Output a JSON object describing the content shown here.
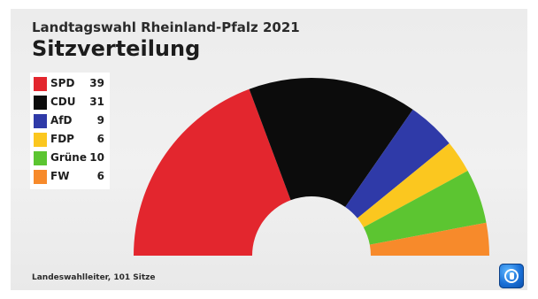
{
  "header": {
    "supertitle": "Landtagswahl Rheinland-Pfalz 2021",
    "title": "Sitzverteilung"
  },
  "chart_data": {
    "type": "pie",
    "subtype": "parliament-semicircle",
    "categories": [
      "SPD",
      "CDU",
      "AfD",
      "FDP",
      "Grüne",
      "FW"
    ],
    "values": [
      39,
      31,
      9,
      6,
      10,
      6
    ],
    "colors": [
      "#e3262e",
      "#0c0c0c",
      "#2f3aa8",
      "#fbc71f",
      "#5cc531",
      "#f78a2b"
    ],
    "legend_placement": "top-left"
  },
  "legend": [
    {
      "party": "SPD",
      "seats": "39",
      "color": "#e3262e"
    },
    {
      "party": "CDU",
      "seats": "31",
      "color": "#0c0c0c"
    },
    {
      "party": "AfD",
      "seats": "9",
      "color": "#2f3aa8"
    },
    {
      "party": "FDP",
      "seats": "6",
      "color": "#fbc71f"
    },
    {
      "party": "Grüne",
      "seats": "10",
      "color": "#5cc531"
    },
    {
      "party": "FW",
      "seats": "6",
      "color": "#f78a2b"
    }
  ],
  "footer": {
    "source": "Landeswahlleiter, 101 Sitze"
  },
  "branding": {
    "logo_icon": "tagesschau-logo-icon"
  }
}
